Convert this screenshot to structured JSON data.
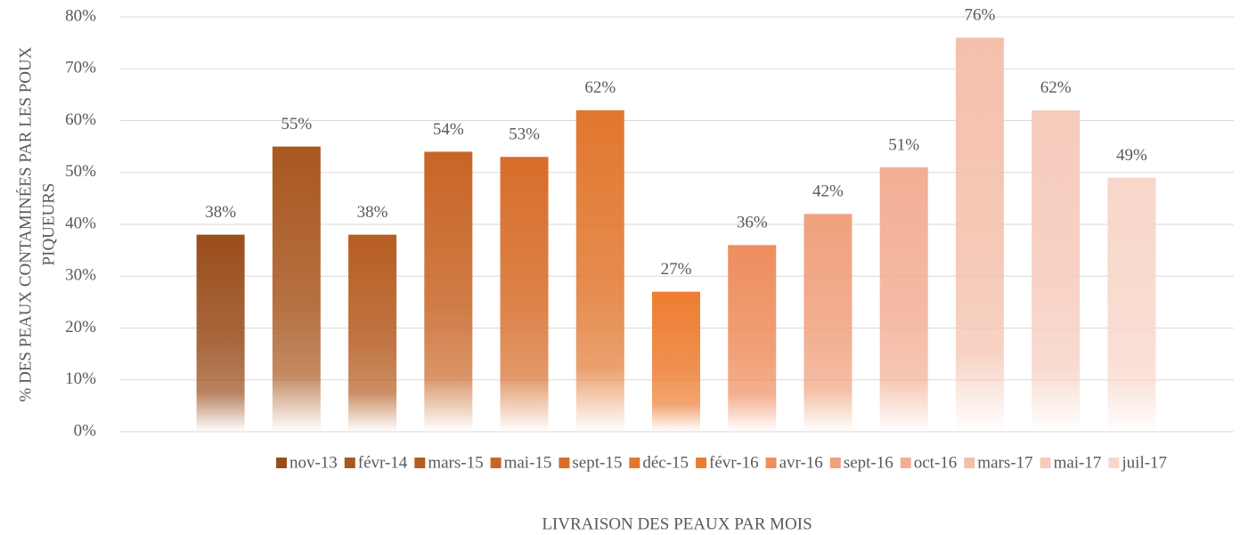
{
  "chart_data": {
    "type": "bar",
    "ylabel": [
      "% DES PEAUX CONTAMINÉES  PAR LES POUX",
      "PIQUEURS"
    ],
    "xlabel": "LIVRAISON DES PEAUX PAR MOIS",
    "categories": [
      "nov-13",
      "févr-14",
      "mars-15",
      "mai-15",
      "sept-15",
      "déc-15",
      "févr-16",
      "avr-16",
      "sept-16",
      "oct-16",
      "mars-17",
      "mai-17",
      "juil-17"
    ],
    "values": [
      38,
      55,
      38,
      54,
      53,
      62,
      27,
      36,
      42,
      51,
      76,
      62,
      49
    ],
    "value_labels": [
      "38%",
      "55%",
      "38%",
      "54%",
      "53%",
      "62%",
      "27%",
      "36%",
      "42%",
      "51%",
      "76%",
      "62%",
      "49%"
    ],
    "colors": [
      "#9a4d1b",
      "#a9571f",
      "#b65d22",
      "#c86526",
      "#d76d2a",
      "#e1772f",
      "#ed7d31",
      "#ee8e5e",
      "#f0a17d",
      "#f2ae94",
      "#f4c0ab",
      "#f6cbbb",
      "#f8d6c9"
    ],
    "ylim": [
      0,
      80
    ],
    "yticks": [
      {
        "value": 0,
        "label": "0%"
      },
      {
        "value": 10,
        "label": "10%"
      },
      {
        "value": 20,
        "label": "20%"
      },
      {
        "value": 30,
        "label": "30%"
      },
      {
        "value": 40,
        "label": "40%"
      },
      {
        "value": 50,
        "label": "50%"
      },
      {
        "value": 60,
        "label": "60%"
      },
      {
        "value": 70,
        "label": "70%"
      },
      {
        "value": 80,
        "label": "80%"
      }
    ],
    "grid": true,
    "legend": "bottom"
  }
}
